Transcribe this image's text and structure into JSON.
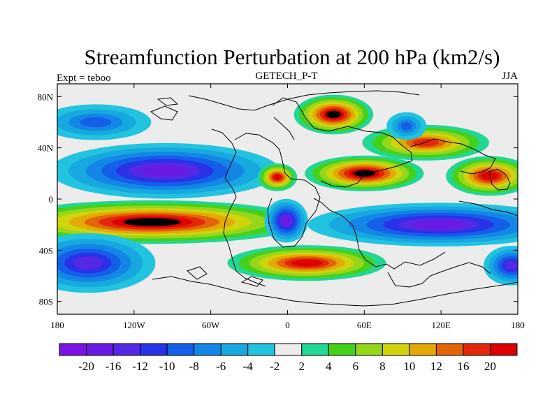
{
  "chart_data": {
    "type": "heatmap",
    "title": "Streamfunction Perturbation at 200 hPa (km2/s)",
    "left_label": "Expt = teboo",
    "center_label": "GETECH_P-T",
    "right_label": "JJA",
    "x_tick_labels": [
      "180",
      "120W",
      "60W",
      "0",
      "60E",
      "120E",
      "180"
    ],
    "y_tick_labels": [
      "80N",
      "40N",
      "0",
      "40S",
      "80S"
    ],
    "xlim": [
      -180,
      180
    ],
    "ylim": [
      -90,
      90
    ],
    "x_ticks": [
      -180,
      -120,
      -60,
      0,
      60,
      120,
      180
    ],
    "y_ticks": [
      80,
      40,
      0,
      -40,
      -80
    ],
    "colorbar_labels": [
      "-20",
      "-16",
      "-12",
      "-10",
      "-8",
      "-6",
      "-4",
      "-2",
      "2",
      "4",
      "6",
      "8",
      "10",
      "12",
      "16",
      "20"
    ],
    "colorbar_colors": [
      "#7c13e0",
      "#6a1be3",
      "#5528e6",
      "#2a32e8",
      "#145ee8",
      "#1486e6",
      "#17a8e0",
      "#22c3df",
      "#ececec",
      "#22d693",
      "#44d11c",
      "#97d61a",
      "#cfd40c",
      "#e3a906",
      "#e26605",
      "#e3270a",
      "#dc0000"
    ],
    "features": [
      {
        "name": "northern-subtropical-low",
        "lon": -96,
        "lat": 22,
        "rx": 58,
        "ry": 14,
        "level": 1
      },
      {
        "name": "southern-subtropical-high",
        "lon": -106,
        "lat": -18,
        "rx": 78,
        "ry": 11,
        "level": 17
      },
      {
        "name": "southern-subtropical-low",
        "lon": 118,
        "lat": -20,
        "rx": 66,
        "ry": 11,
        "level": 1
      },
      {
        "name": "south-atlantic-low",
        "lon": -1,
        "lat": -17,
        "rx": 11,
        "ry": 11,
        "level": 1
      },
      {
        "name": "asian-high",
        "lon": 60,
        "lat": 20,
        "rx": 30,
        "ry": 9,
        "level": 17
      },
      {
        "name": "north-atlantic-high",
        "lon": -8,
        "lat": 17,
        "rx": 10,
        "ry": 7,
        "level": 16
      },
      {
        "name": "east-asian-high",
        "lon": 108,
        "lat": 44,
        "rx": 32,
        "ry": 9,
        "level": 15
      },
      {
        "name": "north-pacific-high",
        "lon": 158,
        "lat": 18,
        "rx": 22,
        "ry": 10,
        "level": 16
      },
      {
        "name": "arctic-high",
        "lon": 36,
        "lat": 66,
        "rx": 20,
        "ry": 10,
        "level": 17
      },
      {
        "name": "southern-ocean-high",
        "lon": 15,
        "lat": -50,
        "rx": 40,
        "ry": 9,
        "level": 16
      },
      {
        "name": "south-pacific-low",
        "lon": -156,
        "lat": -50,
        "rx": 34,
        "ry": 15,
        "level": 2
      },
      {
        "name": "southern-indian-low",
        "lon": 175,
        "lat": -52,
        "rx": 14,
        "ry": 10,
        "level": 2
      },
      {
        "name": "northeast-pacific-low",
        "lon": -150,
        "lat": 60,
        "rx": 28,
        "ry": 9,
        "level": 4
      },
      {
        "name": "siberian-low",
        "lon": 93,
        "lat": 57,
        "rx": 10,
        "ry": 7,
        "level": 4
      }
    ]
  }
}
